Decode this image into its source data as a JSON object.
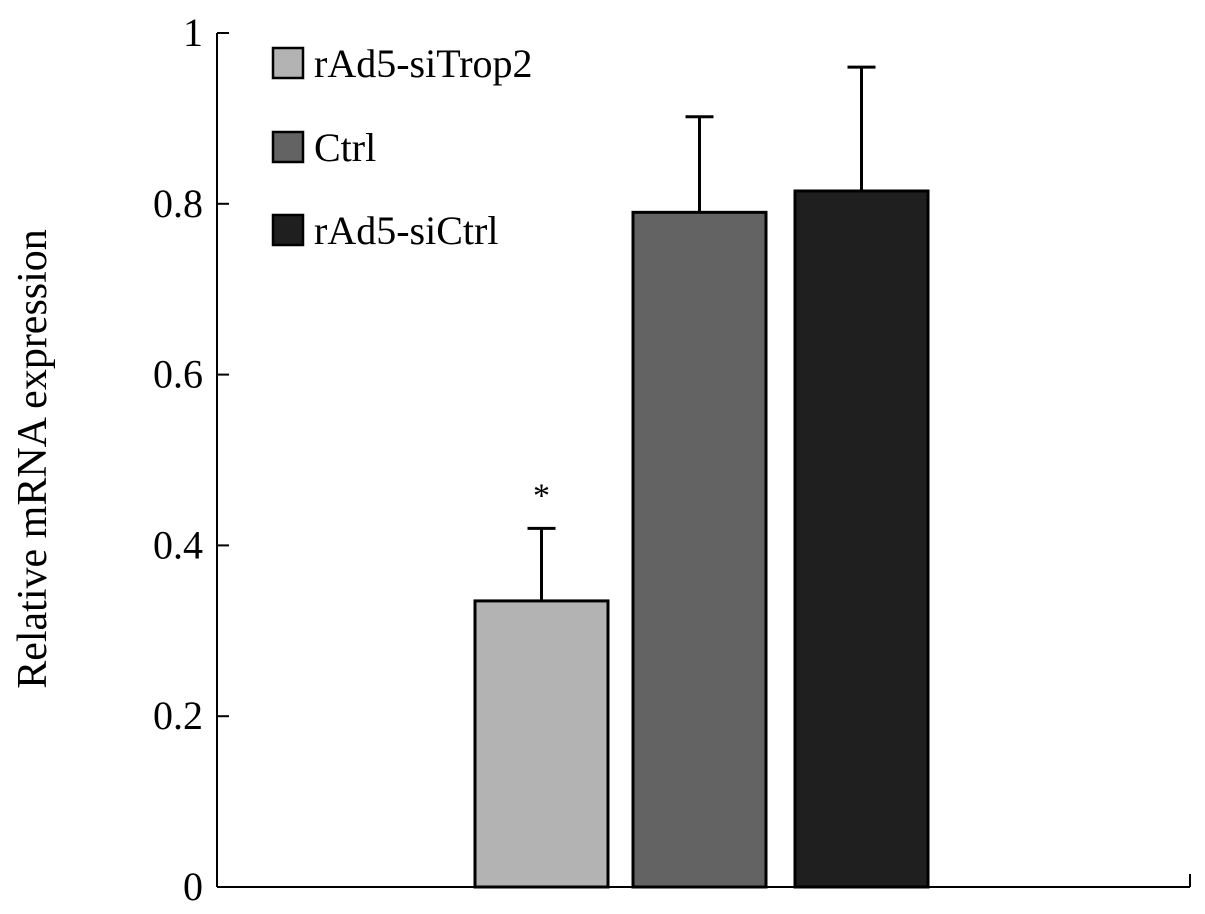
{
  "chart_data": {
    "type": "bar",
    "title": "",
    "xlabel": "",
    "ylabel": "Relative mRNA expression",
    "ylim": [
      0,
      1
    ],
    "yticks": [
      "0",
      "0.2",
      "0.4",
      "0.6",
      "0.8",
      "1"
    ],
    "grid": false,
    "legend_position": "top-left",
    "series": [
      {
        "name": "rAd5-siTrop2",
        "value": 0.335,
        "error": 0.085,
        "color": "#b3b3b3",
        "annotation": "*"
      },
      {
        "name": "Ctrl",
        "value": 0.79,
        "error": 0.112,
        "color": "#636363",
        "annotation": ""
      },
      {
        "name": "rAd5-siCtrl",
        "value": 0.815,
        "error": 0.145,
        "color": "#1f1f1f",
        "annotation": ""
      }
    ]
  }
}
